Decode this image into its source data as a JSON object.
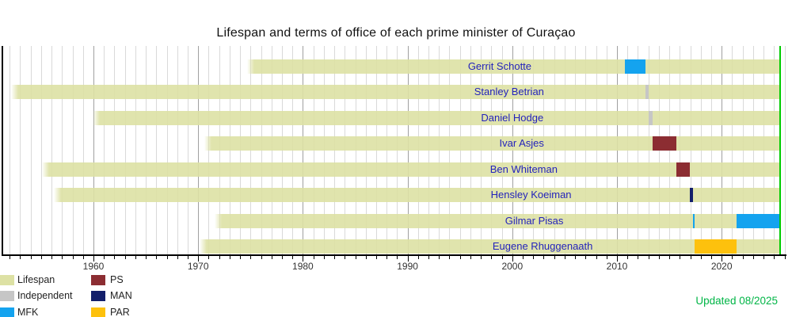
{
  "title": "Lifespan and terms of office of each prime minister of Curaçao",
  "updated_note": "Updated 08/2025",
  "colors": {
    "lifespan": "#dde1a4",
    "independent": "#c6c6c6",
    "mfk": "#14a3ef",
    "ps": "#8c2d32",
    "man": "#131f6b",
    "par": "#fdc10d",
    "now_line": "#00cc00",
    "updated_text": "#00b546",
    "name_text": "#2323bb",
    "gridline": "#d9d9d9",
    "gridline_decade": "#a0a0a0",
    "axis": "#000000"
  },
  "legend": {
    "columns": [
      [
        {
          "label": "Lifespan",
          "color_key": "lifespan"
        },
        {
          "label": "Independent",
          "color_key": "independent"
        },
        {
          "label": "MFK",
          "color_key": "mfk"
        }
      ],
      [
        {
          "label": "PS",
          "color_key": "ps"
        },
        {
          "label": "MAN",
          "color_key": "man"
        },
        {
          "label": "PAR",
          "color_key": "par"
        }
      ]
    ]
  },
  "chart_data": {
    "type": "timeline-gantt",
    "title": "Lifespan and terms of office of each prime minister of Curaçao",
    "x_axis": {
      "start_year": 1951.2,
      "end_year": 2026.2,
      "tick_years": [
        1960,
        1970,
        1980,
        1990,
        2000,
        2010,
        2020
      ],
      "gridlines": "yearly",
      "now_year": 2025.6
    },
    "ministers": [
      {
        "name": "Gerrit Schotte",
        "party": "MFK",
        "lifespan_start": 1974.7,
        "lifespan_end": 2025.6,
        "label_year": 1998.8,
        "terms": [
          {
            "start": 2010.78,
            "end": 2012.75,
            "party": "mfk"
          }
        ]
      },
      {
        "name": "Stanley Betrian",
        "party": "Independent",
        "lifespan_start": 1952.1,
        "lifespan_end": 2025.6,
        "label_year": 1999.7,
        "terms": [
          {
            "start": 2012.75,
            "end": 2013.0,
            "party": "independent"
          }
        ]
      },
      {
        "name": "Daniel Hodge",
        "party": "Independent",
        "lifespan_start": 1959.95,
        "lifespan_end": 2025.6,
        "label_year": 2000.0,
        "terms": [
          {
            "start": 2013.0,
            "end": 2013.43,
            "party": "independent"
          }
        ]
      },
      {
        "name": "Ivar Asjes",
        "party": "PS",
        "lifespan_start": 1970.6,
        "lifespan_end": 2025.6,
        "label_year": 2000.9,
        "terms": [
          {
            "start": 2013.43,
            "end": 2015.67,
            "party": "ps"
          }
        ]
      },
      {
        "name": "Ben Whiteman",
        "party": "PS",
        "lifespan_start": 1955.1,
        "lifespan_end": 2025.6,
        "label_year": 2001.1,
        "terms": [
          {
            "start": 2015.67,
            "end": 2016.98,
            "party": "ps"
          }
        ]
      },
      {
        "name": "Hensley Koeiman",
        "party": "MAN",
        "lifespan_start": 1956.2,
        "lifespan_end": 2025.6,
        "label_year": 2001.8,
        "terms": [
          {
            "start": 2016.98,
            "end": 2017.23,
            "party": "man"
          }
        ]
      },
      {
        "name": "Gilmar Pisas",
        "party": "MFK",
        "lifespan_start": 1971.6,
        "lifespan_end": 2025.6,
        "label_year": 2002.1,
        "terms": [
          {
            "start": 2017.23,
            "end": 2017.41,
            "party": "mfk"
          },
          {
            "start": 2021.45,
            "end": 2025.6,
            "party": "mfk"
          }
        ]
      },
      {
        "name": "Eugene Rhuggenaath",
        "party": "PAR",
        "lifespan_start": 1970.1,
        "lifespan_end": 2025.6,
        "label_year": 2002.9,
        "terms": [
          {
            "start": 2017.41,
            "end": 2021.45,
            "party": "par"
          }
        ]
      }
    ]
  }
}
